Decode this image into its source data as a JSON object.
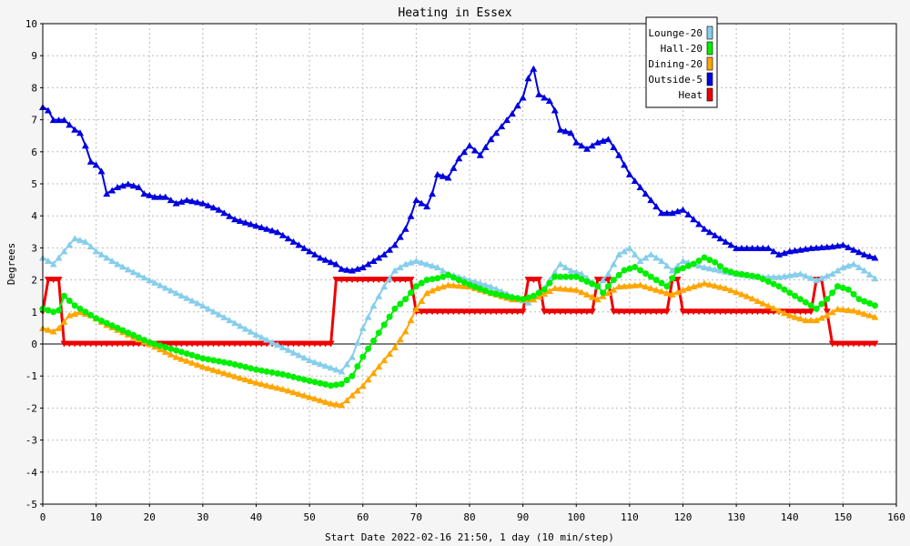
{
  "chart_data": {
    "type": "line",
    "title": "Heating in Essex",
    "xlabel": "Start Date 2022-02-16 21:50, 1 day (10 min/step)",
    "ylabel": "Degrees",
    "xlim": [
      0,
      160
    ],
    "ylim": [
      -5,
      10
    ],
    "xticks": [
      0,
      10,
      20,
      30,
      40,
      50,
      60,
      70,
      80,
      90,
      100,
      110,
      120,
      130,
      140,
      150,
      160
    ],
    "yticks": [
      -5,
      -4,
      -3,
      -2,
      -1,
      0,
      1,
      2,
      3,
      4,
      5,
      6,
      7,
      8,
      9,
      10
    ],
    "grid": true,
    "legend_position": "top-right",
    "series": [
      {
        "name": "Lounge-20",
        "color": "#87ceeb",
        "marker": "triangle",
        "points": [
          [
            0,
            2.7
          ],
          [
            2,
            2.5
          ],
          [
            4,
            2.9
          ],
          [
            6,
            3.3
          ],
          [
            8,
            3.2
          ],
          [
            10,
            2.9
          ],
          [
            14,
            2.5
          ],
          [
            20,
            2.0
          ],
          [
            30,
            1.2
          ],
          [
            40,
            0.3
          ],
          [
            50,
            -0.5
          ],
          [
            56,
            -0.85
          ],
          [
            58,
            -0.4
          ],
          [
            60,
            0.5
          ],
          [
            62,
            1.2
          ],
          [
            64,
            1.8
          ],
          [
            66,
            2.3
          ],
          [
            68,
            2.5
          ],
          [
            70,
            2.6
          ],
          [
            72,
            2.5
          ],
          [
            74,
            2.4
          ],
          [
            76,
            2.2
          ],
          [
            78,
            2.1
          ],
          [
            80,
            2.0
          ],
          [
            84,
            1.8
          ],
          [
            88,
            1.5
          ],
          [
            91,
            1.3
          ],
          [
            93,
            1.5
          ],
          [
            95,
            2.0
          ],
          [
            97,
            2.5
          ],
          [
            99,
            2.3
          ],
          [
            101,
            2.2
          ],
          [
            104,
            1.8
          ],
          [
            106,
            2.2
          ],
          [
            108,
            2.8
          ],
          [
            110,
            3.0
          ],
          [
            112,
            2.6
          ],
          [
            114,
            2.8
          ],
          [
            116,
            2.6
          ],
          [
            118,
            2.3
          ],
          [
            120,
            2.6
          ],
          [
            122,
            2.5
          ],
          [
            124,
            2.4
          ],
          [
            127,
            2.3
          ],
          [
            130,
            2.2
          ],
          [
            134,
            2.1
          ],
          [
            138,
            2.1
          ],
          [
            142,
            2.2
          ],
          [
            145,
            2.0
          ],
          [
            148,
            2.2
          ],
          [
            150,
            2.4
          ],
          [
            152,
            2.5
          ],
          [
            154,
            2.3
          ],
          [
            156,
            2.05
          ]
        ]
      },
      {
        "name": "Hall-20",
        "color": "#00ee00",
        "marker": "circle",
        "points": [
          [
            0,
            1.1
          ],
          [
            2,
            1.0
          ],
          [
            3,
            1.05
          ],
          [
            4,
            1.5
          ],
          [
            6,
            1.2
          ],
          [
            8,
            1.0
          ],
          [
            10,
            0.8
          ],
          [
            14,
            0.5
          ],
          [
            20,
            0.05
          ],
          [
            25,
            -0.2
          ],
          [
            30,
            -0.45
          ],
          [
            35,
            -0.6
          ],
          [
            40,
            -0.8
          ],
          [
            45,
            -0.95
          ],
          [
            50,
            -1.15
          ],
          [
            54,
            -1.3
          ],
          [
            56,
            -1.25
          ],
          [
            58,
            -1.0
          ],
          [
            60,
            -0.4
          ],
          [
            62,
            0.1
          ],
          [
            64,
            0.6
          ],
          [
            66,
            1.1
          ],
          [
            68,
            1.4
          ],
          [
            70,
            1.8
          ],
          [
            72,
            2.0
          ],
          [
            74,
            2.05
          ],
          [
            76,
            2.15
          ],
          [
            78,
            2.0
          ],
          [
            80,
            1.85
          ],
          [
            84,
            1.6
          ],
          [
            88,
            1.45
          ],
          [
            90,
            1.4
          ],
          [
            92,
            1.5
          ],
          [
            94,
            1.7
          ],
          [
            96,
            2.1
          ],
          [
            100,
            2.1
          ],
          [
            104,
            1.8
          ],
          [
            105,
            1.6
          ],
          [
            107,
            2.0
          ],
          [
            109,
            2.3
          ],
          [
            111,
            2.4
          ],
          [
            113,
            2.2
          ],
          [
            115,
            2.0
          ],
          [
            117,
            1.8
          ],
          [
            119,
            2.3
          ],
          [
            122,
            2.5
          ],
          [
            124,
            2.7
          ],
          [
            126,
            2.55
          ],
          [
            128,
            2.3
          ],
          [
            130,
            2.2
          ],
          [
            134,
            2.1
          ],
          [
            138,
            1.8
          ],
          [
            141,
            1.5
          ],
          [
            143,
            1.3
          ],
          [
            145,
            1.1
          ],
          [
            147,
            1.4
          ],
          [
            149,
            1.8
          ],
          [
            151,
            1.7
          ],
          [
            153,
            1.4
          ],
          [
            156,
            1.2
          ]
        ]
      },
      {
        "name": "Dining-20",
        "color": "#ffa500",
        "marker": "triangle",
        "points": [
          [
            0,
            0.5
          ],
          [
            2,
            0.4
          ],
          [
            3,
            0.5
          ],
          [
            5,
            0.9
          ],
          [
            7,
            1.0
          ],
          [
            9,
            0.9
          ],
          [
            12,
            0.6
          ],
          [
            16,
            0.3
          ],
          [
            20,
            0.0
          ],
          [
            25,
            -0.4
          ],
          [
            30,
            -0.7
          ],
          [
            35,
            -0.95
          ],
          [
            40,
            -1.2
          ],
          [
            45,
            -1.4
          ],
          [
            50,
            -1.65
          ],
          [
            54,
            -1.85
          ],
          [
            56,
            -1.9
          ],
          [
            58,
            -1.6
          ],
          [
            60,
            -1.3
          ],
          [
            62,
            -0.9
          ],
          [
            64,
            -0.5
          ],
          [
            66,
            -0.1
          ],
          [
            68,
            0.4
          ],
          [
            70,
            1.1
          ],
          [
            72,
            1.6
          ],
          [
            74,
            1.75
          ],
          [
            76,
            1.85
          ],
          [
            80,
            1.8
          ],
          [
            84,
            1.6
          ],
          [
            88,
            1.4
          ],
          [
            92,
            1.4
          ],
          [
            96,
            1.75
          ],
          [
            100,
            1.7
          ],
          [
            104,
            1.4
          ],
          [
            106,
            1.6
          ],
          [
            108,
            1.8
          ],
          [
            112,
            1.85
          ],
          [
            116,
            1.65
          ],
          [
            118,
            1.55
          ],
          [
            120,
            1.7
          ],
          [
            124,
            1.9
          ],
          [
            128,
            1.75
          ],
          [
            132,
            1.5
          ],
          [
            136,
            1.2
          ],
          [
            140,
            0.9
          ],
          [
            143,
            0.75
          ],
          [
            145,
            0.75
          ],
          [
            147,
            0.9
          ],
          [
            149,
            1.1
          ],
          [
            152,
            1.05
          ],
          [
            154,
            0.95
          ],
          [
            156,
            0.85
          ]
        ]
      },
      {
        "name": "Outside-5",
        "color": "#0000dd",
        "marker": "triangle",
        "points": [
          [
            0,
            7.4
          ],
          [
            1,
            7.3
          ],
          [
            2,
            7.0
          ],
          [
            4,
            7.0
          ],
          [
            6,
            6.7
          ],
          [
            7,
            6.6
          ],
          [
            8,
            6.2
          ],
          [
            9,
            5.7
          ],
          [
            10,
            5.6
          ],
          [
            11,
            5.4
          ],
          [
            12,
            4.7
          ],
          [
            14,
            4.9
          ],
          [
            16,
            5.0
          ],
          [
            18,
            4.9
          ],
          [
            19,
            4.7
          ],
          [
            21,
            4.6
          ],
          [
            23,
            4.6
          ],
          [
            25,
            4.4
          ],
          [
            27,
            4.5
          ],
          [
            30,
            4.4
          ],
          [
            33,
            4.2
          ],
          [
            36,
            3.9
          ],
          [
            40,
            3.7
          ],
          [
            44,
            3.5
          ],
          [
            48,
            3.1
          ],
          [
            52,
            2.7
          ],
          [
            55,
            2.5
          ],
          [
            56,
            2.35
          ],
          [
            58,
            2.3
          ],
          [
            60,
            2.4
          ],
          [
            62,
            2.6
          ],
          [
            64,
            2.8
          ],
          [
            66,
            3.1
          ],
          [
            68,
            3.6
          ],
          [
            69,
            4.0
          ],
          [
            70,
            4.5
          ],
          [
            72,
            4.3
          ],
          [
            73,
            4.7
          ],
          [
            74,
            5.3
          ],
          [
            76,
            5.2
          ],
          [
            78,
            5.8
          ],
          [
            80,
            6.2
          ],
          [
            82,
            5.9
          ],
          [
            84,
            6.4
          ],
          [
            86,
            6.8
          ],
          [
            88,
            7.2
          ],
          [
            90,
            7.7
          ],
          [
            91,
            8.3
          ],
          [
            92,
            8.6
          ],
          [
            93,
            7.8
          ],
          [
            95,
            7.6
          ],
          [
            96,
            7.3
          ],
          [
            97,
            6.7
          ],
          [
            99,
            6.6
          ],
          [
            100,
            6.3
          ],
          [
            102,
            6.1
          ],
          [
            104,
            6.3
          ],
          [
            106,
            6.4
          ],
          [
            108,
            5.9
          ],
          [
            110,
            5.3
          ],
          [
            112,
            4.9
          ],
          [
            114,
            4.5
          ],
          [
            116,
            4.1
          ],
          [
            118,
            4.1
          ],
          [
            120,
            4.2
          ],
          [
            122,
            3.9
          ],
          [
            124,
            3.6
          ],
          [
            126,
            3.4
          ],
          [
            128,
            3.2
          ],
          [
            130,
            3.0
          ],
          [
            134,
            3.0
          ],
          [
            136,
            3.0
          ],
          [
            138,
            2.8
          ],
          [
            140,
            2.9
          ],
          [
            144,
            3.0
          ],
          [
            148,
            3.05
          ],
          [
            150,
            3.1
          ],
          [
            152,
            2.95
          ],
          [
            154,
            2.8
          ],
          [
            156,
            2.7
          ]
        ]
      },
      {
        "name": "Heat",
        "color": "#ee0000",
        "marker": "triangle-down",
        "points": [
          [
            0,
            1
          ],
          [
            1,
            2
          ],
          [
            2,
            2
          ],
          [
            3,
            2
          ],
          [
            4,
            0
          ],
          [
            10,
            0
          ],
          [
            20,
            0
          ],
          [
            30,
            0
          ],
          [
            40,
            0
          ],
          [
            54,
            0
          ],
          [
            55,
            2
          ],
          [
            60,
            2
          ],
          [
            65,
            2
          ],
          [
            69,
            2
          ],
          [
            70,
            1
          ],
          [
            75,
            1
          ],
          [
            80,
            1
          ],
          [
            85,
            1
          ],
          [
            90,
            1
          ],
          [
            91,
            2
          ],
          [
            93,
            2
          ],
          [
            94,
            1
          ],
          [
            100,
            1
          ],
          [
            103,
            1
          ],
          [
            104,
            2
          ],
          [
            106,
            2
          ],
          [
            107,
            1
          ],
          [
            110,
            1
          ],
          [
            117,
            1
          ],
          [
            118,
            2
          ],
          [
            119,
            2
          ],
          [
            120,
            1
          ],
          [
            125,
            1
          ],
          [
            130,
            1
          ],
          [
            135,
            1
          ],
          [
            140,
            1
          ],
          [
            144,
            1
          ],
          [
            145,
            2
          ],
          [
            146,
            2
          ],
          [
            148,
            0
          ],
          [
            150,
            0
          ],
          [
            156,
            0
          ]
        ]
      }
    ]
  }
}
